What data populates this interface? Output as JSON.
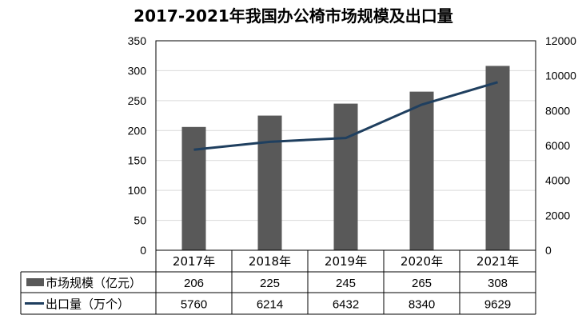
{
  "chart_data": {
    "type": "bar",
    "title": "2017-2021年我国办公椅市场规模及出口量",
    "categories": [
      "2017年",
      "2018年",
      "2019年",
      "2020年",
      "2021年"
    ],
    "series": [
      {
        "name": "市场规模（亿元）",
        "type": "bar",
        "axis": "left",
        "values": [
          206,
          225,
          245,
          265,
          308
        ],
        "color": "#595959"
      },
      {
        "name": "出口量（万个）",
        "type": "line",
        "axis": "right",
        "values": [
          5760,
          6214,
          6432,
          8340,
          9629
        ],
        "color": "#1f3f5f"
      }
    ],
    "y_left": {
      "min": 0,
      "max": 350,
      "step": 50,
      "ticks": [
        "0",
        "50",
        "100",
        "150",
        "200",
        "250",
        "300",
        "350"
      ]
    },
    "y_right": {
      "min": 0,
      "max": 12000,
      "step": 2000,
      "ticks": [
        "0",
        "2000",
        "4000",
        "6000",
        "8000",
        "10000",
        "12000"
      ]
    },
    "grid": true,
    "legend": "data-table"
  }
}
